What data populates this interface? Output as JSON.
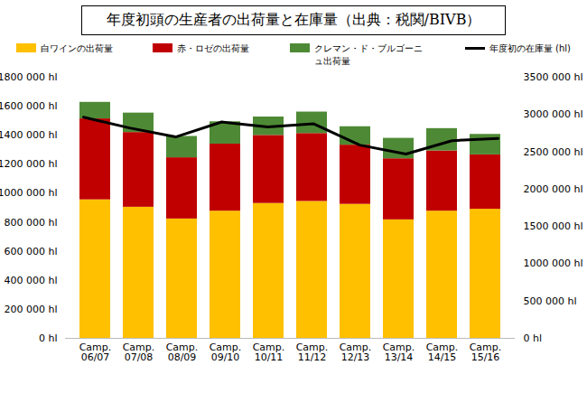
{
  "chart_data": {
    "type": "bar",
    "title": "年度初頭の生産者の出荷量と在庫量（出典：税関/BIVB）",
    "stacked": true,
    "legend": "top",
    "categories": [
      "Camp. 06/07",
      "Camp. 07/08",
      "Camp. 08/09",
      "Camp. 09/10",
      "Camp. 10/11",
      "Camp. 11/12",
      "Camp. 12/13",
      "Camp. 13/14",
      "Camp. 14/15",
      "Camp. 15/16"
    ],
    "series": [
      {
        "name": "白ワインの出荷量",
        "color": "#ffc000",
        "values": [
          955000,
          904000,
          823000,
          877000,
          930000,
          944000,
          924000,
          817000,
          877000,
          890000
        ]
      },
      {
        "name": "赤・ロゼの出荷量",
        "color": "#c00000",
        "values": [
          558000,
          515000,
          422000,
          462000,
          469000,
          468000,
          408000,
          421000,
          415000,
          375000
        ]
      },
      {
        "name": "クレマン・ド・ブルゴーニュ出荷量",
        "color": "#4e8a35",
        "values": [
          114000,
          134000,
          147000,
          154000,
          127000,
          148000,
          127000,
          141000,
          154000,
          141000
        ]
      },
      {
        "name": "年度初の在庫量 (hl)",
        "color": "#000000",
        "type": "line",
        "axis": "y2",
        "values": [
          2965000,
          2820000,
          2700000,
          2900000,
          2835000,
          2875000,
          2590000,
          2470000,
          2650000,
          2680000
        ]
      }
    ],
    "ylim": [
      0,
      1800000
    ],
    "yticks": [
      {
        "value": 0,
        "label": "0 hl"
      },
      {
        "value": 200000,
        "label": "200 000 hl"
      },
      {
        "value": 400000,
        "label": "400 000 hl"
      },
      {
        "value": 600000,
        "label": "600 000 hl"
      },
      {
        "value": 800000,
        "label": "800 000 hl"
      },
      {
        "value": 1000000,
        "label": "1000 000 hl"
      },
      {
        "value": 1200000,
        "label": "1200 000 hl"
      },
      {
        "value": 1400000,
        "label": "1400 000 hl"
      },
      {
        "value": 1600000,
        "label": "1600 000 hl"
      },
      {
        "value": 1800000,
        "label": "1800 000 hl"
      }
    ],
    "y2lim": [
      0,
      3500000
    ],
    "y2ticks": [
      {
        "value": 0,
        "label": "0 hl"
      },
      {
        "value": 500000,
        "label": "500 000 hl"
      },
      {
        "value": 1000000,
        "label": "1000 000 hl"
      },
      {
        "value": 1500000,
        "label": "1500 000 hl"
      },
      {
        "value": 2000000,
        "label": "2000 000 hl"
      },
      {
        "value": 2500000,
        "label": "2500 000 hl"
      },
      {
        "value": 3000000,
        "label": "3000 000 hl"
      },
      {
        "value": 3500000,
        "label": "3500 000 hl"
      }
    ],
    "grid": false
  }
}
